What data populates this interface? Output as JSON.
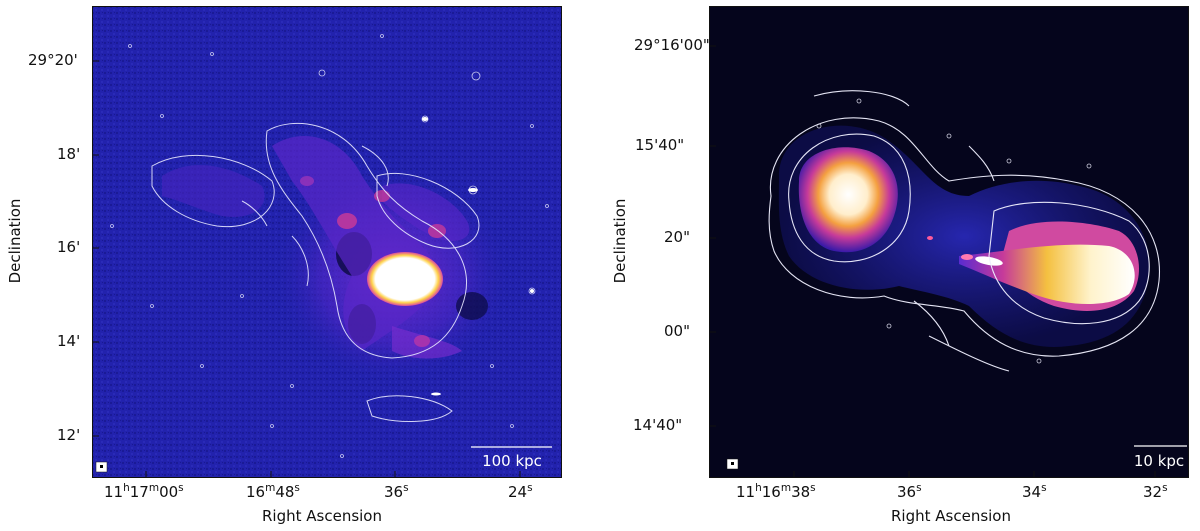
{
  "panels": [
    {
      "id": "left",
      "xlabel": "Right Ascension",
      "ylabel": "Declination",
      "x_ticks": [
        {
          "pre": "11",
          "sep1": "h",
          "mid": "17",
          "sep2": "m",
          "post": "00",
          "sep3": "s"
        },
        {
          "pre": "",
          "sep1": "",
          "mid": "16",
          "sep2": "m",
          "post": "48",
          "sep3": "s"
        },
        {
          "pre": "",
          "sep1": "",
          "mid": "",
          "sep2": "",
          "post": "36",
          "sep3": "s"
        },
        {
          "pre": "",
          "sep1": "",
          "mid": "",
          "sep2": "",
          "post": "24",
          "sep3": "s"
        }
      ],
      "y_ticks": [
        "29°20'",
        "18'",
        "16'",
        "14'",
        "12'"
      ],
      "scale_bar": "100 kpc"
    },
    {
      "id": "right",
      "xlabel": "Right Ascension",
      "ylabel": "Declination",
      "x_ticks": [
        {
          "pre": "11",
          "sep1": "h",
          "mid": "16",
          "sep2": "m",
          "post": "38",
          "sep3": "s"
        },
        {
          "pre": "",
          "sep1": "",
          "mid": "",
          "sep2": "",
          "post": "36",
          "sep3": "s"
        },
        {
          "pre": "",
          "sep1": "",
          "mid": "",
          "sep2": "",
          "post": "34",
          "sep3": "s"
        },
        {
          "pre": "",
          "sep1": "",
          "mid": "",
          "sep2": "",
          "post": "32",
          "sep3": "s"
        }
      ],
      "y_ticks": [
        "29°16'00\"",
        "15'40\"",
        "20\"",
        "00\"",
        "14'40\""
      ],
      "scale_bar": "10 kpc"
    }
  ],
  "colors": {
    "background_left": "#2020a8",
    "background_right": "#05051c",
    "emission_core": "#ffffff",
    "emission_mid": "#f4c040",
    "emission_low": "#c63a9a",
    "emission_faint": "#6a2bd0",
    "contour": "#e8e8ff"
  }
}
